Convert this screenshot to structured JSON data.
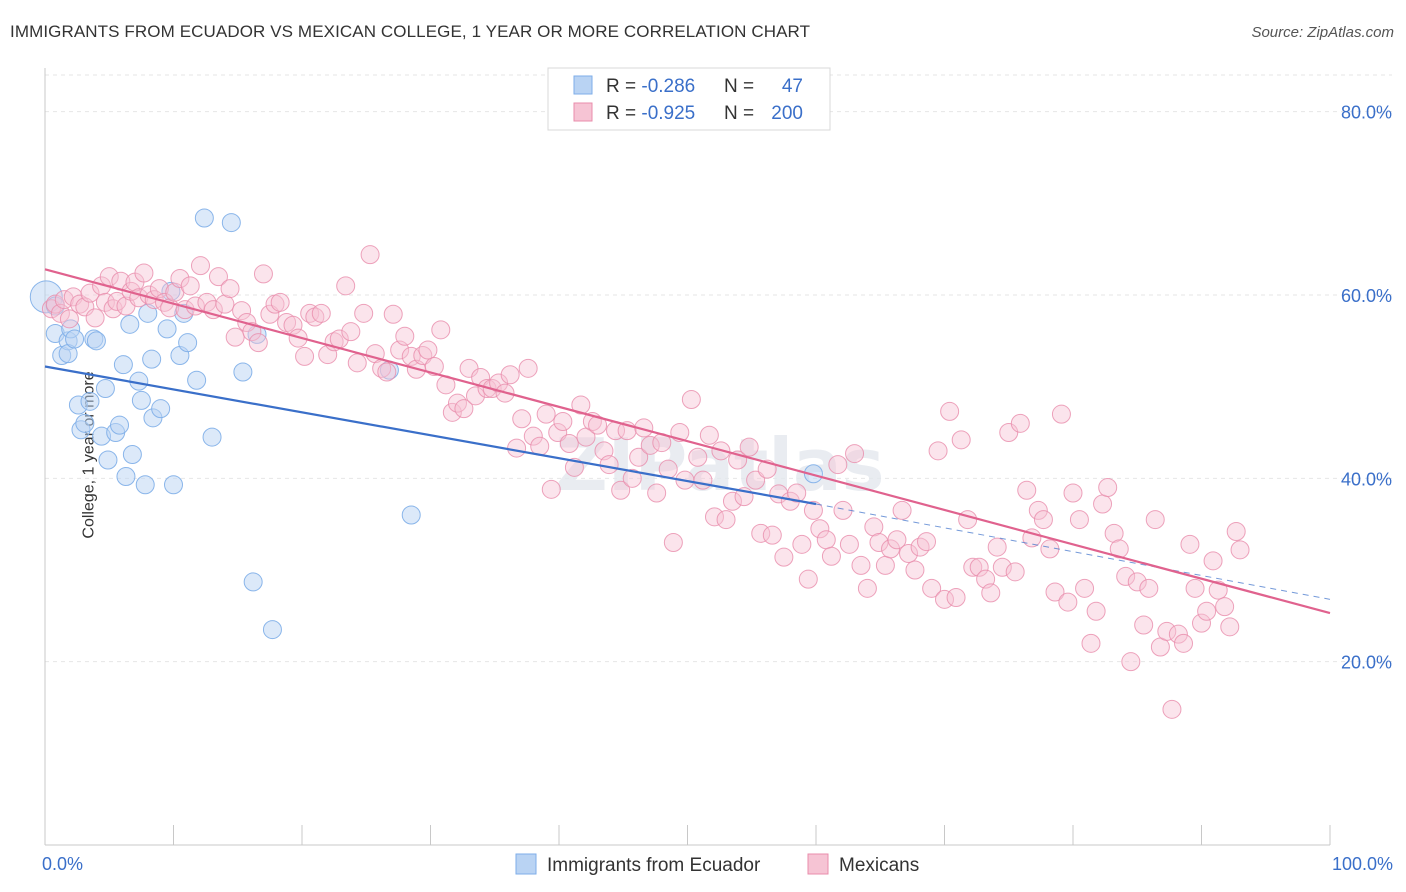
{
  "title": "IMMIGRANTS FROM ECUADOR VS MEXICAN COLLEGE, 1 YEAR OR MORE CORRELATION CHART",
  "source": "Source: ZipAtlas.com",
  "colors": {
    "blue": "#7eaee8",
    "blue_fill": "#b9d3f3",
    "blue_line": "#3a6fc9",
    "pink": "#e98cab",
    "pink_fill": "#f6c4d4",
    "pink_line": "#e0628e",
    "value_text": "#3a6fc9"
  },
  "legend_box": [
    {
      "r_label": "R = ",
      "r_value": "-0.286",
      "n_label": "N = ",
      "n_value": "47"
    },
    {
      "r_label": "R = ",
      "r_value": "-0.925",
      "n_label": "N = ",
      "n_value": "200"
    }
  ],
  "watermark": "ZIPatlas",
  "chart_data": {
    "type": "scatter",
    "title": "IMMIGRANTS FROM ECUADOR VS MEXICAN COLLEGE, 1 YEAR OR MORE CORRELATION CHART",
    "xlabel": "",
    "ylabel": "College, 1 year or more",
    "xlim": [
      0,
      100
    ],
    "ylim": [
      0,
      84
    ],
    "x_tick_labels": [
      "0.0%",
      "100.0%"
    ],
    "y_ticks": [
      20,
      40,
      60,
      80
    ],
    "y_tick_labels": [
      "20.0%",
      "40.0%",
      "60.0%",
      "80.0%"
    ],
    "grid": true,
    "legend": "bottom-center",
    "series": [
      {
        "name": "Immigrants from Ecuador",
        "color": "#7eaee8",
        "trend": {
          "x0": 0,
          "y0": 52.2,
          "x1": 60,
          "y1": 37.2,
          "dashed_to_x": 100,
          "dashed_to_y": 26.8
        },
        "points": [
          [
            0.1,
            59.8
          ],
          [
            0.8,
            58.8
          ],
          [
            0.8,
            55.8
          ],
          [
            1.3,
            53.4
          ],
          [
            1.8,
            55.0
          ],
          [
            1.8,
            53.6
          ],
          [
            2.0,
            56.3
          ],
          [
            2.3,
            55.2
          ],
          [
            2.6,
            48.0
          ],
          [
            2.8,
            45.3
          ],
          [
            3.1,
            46.0
          ],
          [
            3.5,
            48.4
          ],
          [
            3.8,
            55.2
          ],
          [
            4.0,
            55.0
          ],
          [
            4.4,
            44.6
          ],
          [
            4.7,
            49.8
          ],
          [
            4.9,
            42.0
          ],
          [
            5.5,
            45.0
          ],
          [
            5.8,
            45.8
          ],
          [
            6.1,
            52.4
          ],
          [
            6.3,
            40.2
          ],
          [
            6.6,
            56.8
          ],
          [
            6.8,
            42.6
          ],
          [
            7.3,
            50.6
          ],
          [
            7.5,
            48.5
          ],
          [
            7.8,
            39.3
          ],
          [
            8.0,
            58.0
          ],
          [
            8.3,
            53.0
          ],
          [
            8.4,
            46.6
          ],
          [
            9.0,
            47.6
          ],
          [
            9.5,
            56.3
          ],
          [
            9.8,
            60.4
          ],
          [
            10.0,
            39.3
          ],
          [
            10.5,
            53.4
          ],
          [
            10.8,
            58.0
          ],
          [
            11.1,
            54.8
          ],
          [
            11.8,
            50.7
          ],
          [
            12.4,
            68.4
          ],
          [
            13.0,
            44.5
          ],
          [
            14.5,
            67.9
          ],
          [
            15.4,
            51.6
          ],
          [
            16.2,
            28.7
          ],
          [
            16.5,
            55.7
          ],
          [
            17.7,
            23.5
          ],
          [
            26.8,
            51.8
          ],
          [
            28.5,
            36.0
          ],
          [
            59.8,
            40.5
          ]
        ]
      },
      {
        "name": "Mexicans",
        "color": "#e98cab",
        "trend": {
          "x0": 0,
          "y0": 62.8,
          "x1": 100,
          "y1": 25.3
        },
        "points": [
          [
            0.5,
            58.5
          ],
          [
            0.8,
            59.0
          ],
          [
            1.2,
            58.0
          ],
          [
            1.5,
            59.5
          ],
          [
            1.9,
            57.4
          ],
          [
            2.2,
            59.8
          ],
          [
            2.7,
            59.0
          ],
          [
            3.1,
            58.7
          ],
          [
            3.5,
            60.2
          ],
          [
            3.9,
            57.5
          ],
          [
            4.4,
            61.0
          ],
          [
            4.7,
            59.2
          ],
          [
            5.0,
            62.0
          ],
          [
            5.3,
            58.5
          ],
          [
            5.6,
            59.3
          ],
          [
            5.9,
            61.5
          ],
          [
            6.3,
            58.8
          ],
          [
            6.7,
            60.4
          ],
          [
            7.0,
            61.4
          ],
          [
            7.3,
            59.7
          ],
          [
            7.7,
            62.4
          ],
          [
            8.1,
            60.0
          ],
          [
            8.5,
            59.5
          ],
          [
            8.9,
            60.7
          ],
          [
            9.3,
            59.2
          ],
          [
            9.7,
            58.6
          ],
          [
            10.1,
            60.3
          ],
          [
            10.5,
            61.8
          ],
          [
            10.9,
            58.4
          ],
          [
            11.3,
            61.0
          ],
          [
            11.7,
            58.8
          ],
          [
            12.1,
            63.2
          ],
          [
            12.6,
            59.2
          ],
          [
            13.1,
            58.4
          ],
          [
            13.5,
            62.0
          ],
          [
            14.0,
            59.0
          ],
          [
            14.4,
            60.7
          ],
          [
            14.8,
            55.4
          ],
          [
            15.3,
            58.3
          ],
          [
            15.7,
            57.0
          ],
          [
            16.1,
            56.0
          ],
          [
            16.6,
            54.8
          ],
          [
            17.0,
            62.3
          ],
          [
            17.5,
            57.9
          ],
          [
            17.9,
            59.0
          ],
          [
            18.3,
            59.2
          ],
          [
            18.8,
            57.0
          ],
          [
            19.3,
            56.7
          ],
          [
            19.7,
            55.3
          ],
          [
            20.2,
            53.3
          ],
          [
            20.6,
            58.0
          ],
          [
            21.0,
            57.6
          ],
          [
            21.5,
            58.0
          ],
          [
            22.0,
            53.5
          ],
          [
            22.5,
            54.9
          ],
          [
            22.9,
            55.2
          ],
          [
            23.4,
            61.0
          ],
          [
            23.8,
            56.0
          ],
          [
            24.3,
            52.6
          ],
          [
            24.8,
            58.0
          ],
          [
            25.3,
            64.4
          ],
          [
            25.7,
            53.6
          ],
          [
            26.2,
            52.0
          ],
          [
            26.6,
            51.6
          ],
          [
            27.1,
            57.9
          ],
          [
            27.6,
            54.0
          ],
          [
            28.0,
            55.5
          ],
          [
            28.5,
            53.3
          ],
          [
            28.9,
            51.9
          ],
          [
            29.4,
            53.4
          ],
          [
            29.8,
            54.0
          ],
          [
            30.3,
            52.2
          ],
          [
            30.8,
            56.2
          ],
          [
            31.2,
            50.2
          ],
          [
            31.7,
            47.2
          ],
          [
            32.1,
            48.2
          ],
          [
            32.6,
            47.6
          ],
          [
            33.0,
            52.0
          ],
          [
            33.5,
            49.0
          ],
          [
            33.9,
            51.0
          ],
          [
            34.4,
            49.8
          ],
          [
            34.8,
            49.8
          ],
          [
            35.3,
            50.4
          ],
          [
            35.8,
            49.3
          ],
          [
            36.2,
            51.3
          ],
          [
            36.7,
            43.3
          ],
          [
            37.1,
            46.5
          ],
          [
            37.6,
            52.0
          ],
          [
            38.0,
            44.6
          ],
          [
            38.5,
            43.5
          ],
          [
            39.0,
            47.0
          ],
          [
            39.4,
            38.8
          ],
          [
            39.9,
            45.0
          ],
          [
            40.3,
            46.2
          ],
          [
            40.8,
            43.8
          ],
          [
            41.2,
            41.2
          ],
          [
            41.7,
            48.0
          ],
          [
            42.1,
            44.5
          ],
          [
            42.6,
            46.2
          ],
          [
            43.0,
            45.8
          ],
          [
            43.5,
            43.0
          ],
          [
            43.9,
            41.5
          ],
          [
            44.4,
            45.2
          ],
          [
            44.8,
            38.7
          ],
          [
            45.3,
            45.2
          ],
          [
            45.7,
            40.0
          ],
          [
            46.2,
            42.3
          ],
          [
            46.6,
            45.5
          ],
          [
            47.1,
            43.6
          ],
          [
            47.6,
            38.4
          ],
          [
            48.0,
            43.9
          ],
          [
            48.5,
            41.0
          ],
          [
            48.9,
            33.0
          ],
          [
            49.4,
            45.0
          ],
          [
            49.8,
            39.8
          ],
          [
            50.3,
            48.6
          ],
          [
            50.8,
            42.3
          ],
          [
            51.2,
            39.8
          ],
          [
            51.7,
            44.7
          ],
          [
            52.1,
            35.8
          ],
          [
            52.6,
            43.0
          ],
          [
            53.0,
            35.5
          ],
          [
            53.5,
            37.5
          ],
          [
            53.9,
            42.0
          ],
          [
            54.4,
            38.0
          ],
          [
            54.8,
            43.4
          ],
          [
            55.3,
            39.8
          ],
          [
            55.7,
            34.0
          ],
          [
            56.2,
            41.0
          ],
          [
            56.6,
            33.8
          ],
          [
            57.1,
            38.3
          ],
          [
            57.5,
            31.4
          ],
          [
            58.0,
            37.5
          ],
          [
            58.5,
            38.4
          ],
          [
            58.9,
            32.8
          ],
          [
            59.4,
            29.0
          ],
          [
            59.8,
            36.5
          ],
          [
            60.3,
            34.5
          ],
          [
            60.8,
            33.3
          ],
          [
            61.2,
            31.5
          ],
          [
            61.7,
            41.5
          ],
          [
            62.1,
            36.5
          ],
          [
            62.6,
            32.8
          ],
          [
            63.0,
            42.7
          ],
          [
            63.5,
            30.5
          ],
          [
            64.0,
            28.0
          ],
          [
            64.5,
            34.7
          ],
          [
            64.9,
            33.0
          ],
          [
            65.4,
            30.5
          ],
          [
            65.8,
            32.3
          ],
          [
            66.3,
            33.3
          ],
          [
            66.7,
            36.5
          ],
          [
            67.2,
            31.8
          ],
          [
            67.7,
            30.0
          ],
          [
            68.1,
            32.5
          ],
          [
            68.6,
            33.1
          ],
          [
            69.0,
            28.0
          ],
          [
            69.5,
            43.0
          ],
          [
            70.0,
            26.8
          ],
          [
            70.4,
            47.3
          ],
          [
            70.9,
            27.0
          ],
          [
            71.3,
            44.2
          ],
          [
            71.8,
            35.5
          ],
          [
            72.2,
            30.3
          ],
          [
            72.7,
            30.3
          ],
          [
            73.2,
            29.0
          ],
          [
            73.6,
            27.5
          ],
          [
            74.1,
            32.5
          ],
          [
            74.5,
            30.3
          ],
          [
            75.0,
            45.0
          ],
          [
            75.5,
            29.8
          ],
          [
            75.9,
            46.0
          ],
          [
            76.4,
            38.7
          ],
          [
            76.8,
            33.5
          ],
          [
            77.3,
            36.5
          ],
          [
            77.7,
            35.5
          ],
          [
            78.2,
            32.3
          ],
          [
            78.6,
            27.6
          ],
          [
            79.1,
            47.0
          ],
          [
            79.6,
            26.5
          ],
          [
            80.0,
            38.4
          ],
          [
            80.5,
            35.5
          ],
          [
            80.9,
            28.0
          ],
          [
            81.4,
            22.0
          ],
          [
            81.8,
            25.5
          ],
          [
            82.3,
            37.2
          ],
          [
            82.7,
            39.0
          ],
          [
            83.2,
            34.0
          ],
          [
            83.6,
            32.3
          ],
          [
            84.1,
            29.3
          ],
          [
            84.5,
            20.0
          ],
          [
            85.0,
            28.7
          ],
          [
            85.5,
            24.0
          ],
          [
            85.9,
            28.0
          ],
          [
            86.4,
            35.5
          ],
          [
            86.8,
            21.6
          ],
          [
            87.3,
            23.3
          ],
          [
            87.7,
            14.8
          ],
          [
            88.2,
            23.0
          ],
          [
            88.6,
            22.0
          ],
          [
            89.1,
            32.8
          ],
          [
            89.5,
            28.0
          ],
          [
            90.0,
            24.2
          ],
          [
            90.4,
            25.5
          ],
          [
            90.9,
            31.0
          ],
          [
            91.3,
            27.8
          ],
          [
            91.8,
            26.0
          ],
          [
            92.2,
            23.8
          ],
          [
            92.7,
            34.2
          ],
          [
            93.0,
            32.2
          ]
        ]
      }
    ]
  }
}
